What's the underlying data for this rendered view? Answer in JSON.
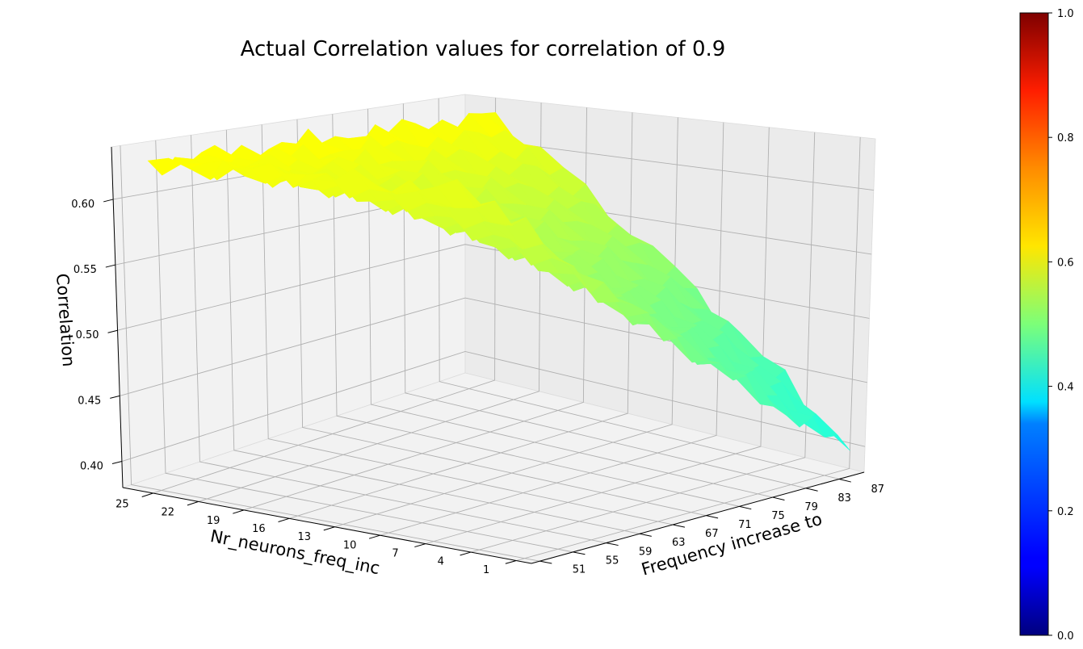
{
  "chart_data": {
    "type": "surface3d",
    "title": "Actual Correlation values for correlation of 0.9",
    "xlabel": "Frequency increase to",
    "ylabel": "Nr_neurons_freq_inc",
    "zlabel": "Correlation",
    "x_ticks": [
      "51",
      "55",
      "59",
      "63",
      "67",
      "71",
      "75",
      "79",
      "83",
      "87"
    ],
    "y_ticks": [
      "1",
      "4",
      "7",
      "10",
      "13",
      "16",
      "19",
      "22",
      "25"
    ],
    "z_ticks": [
      "0.40",
      "0.45",
      "0.50",
      "0.55",
      "0.60"
    ],
    "xlim": [
      50,
      90
    ],
    "ylim": [
      0,
      27
    ],
    "zlim": [
      0.38,
      0.64
    ],
    "colormap": "jet",
    "colorbar": {
      "range": [
        0.0,
        1.0
      ],
      "ticks": [
        "0.0",
        "0.2",
        "0.4",
        "0.6",
        "0.8",
        "1.0"
      ]
    },
    "surface_corners": [
      {
        "x": 51,
        "y": 25,
        "z": 0.625
      },
      {
        "x": 51,
        "y": 1,
        "z": 0.6
      },
      {
        "x": 90,
        "y": 25,
        "z": 0.625
      },
      {
        "x": 90,
        "y": 1,
        "z": 0.395
      }
    ],
    "grid": true
  }
}
